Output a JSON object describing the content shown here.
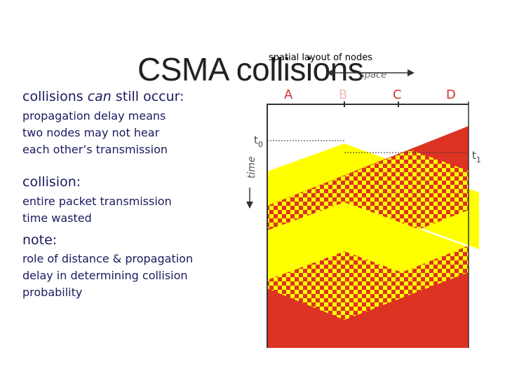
{
  "slide": {
    "title": "CSMA collisions",
    "subtitle": "spatial layout of nodes",
    "bullets": [
      {
        "heading_plain": "collisions ",
        "heading_italic": "can",
        "heading_rest": " still occur:",
        "body": [
          "propagation delay means",
          "two nodes may not hear",
          "each other’s transmission"
        ]
      },
      {
        "heading": "collision:",
        "body": [
          "entire packet transmission",
          "time wasted"
        ]
      },
      {
        "heading": "note:",
        "body": [
          "role of distance & propagation",
          "delay in determining collision",
          "probability"
        ]
      }
    ]
  },
  "diagram": {
    "space_label": "space",
    "time_label": "time",
    "nodes": [
      "A",
      "B",
      "C",
      "D"
    ],
    "t0_label": "t",
    "t0_sub": "0",
    "t1_label": "t",
    "t1_sub": "1",
    "colors": {
      "yellow": "#ffff00",
      "red": "#dd3322",
      "node_text": "#d23030",
      "axis": "#333333"
    }
  }
}
